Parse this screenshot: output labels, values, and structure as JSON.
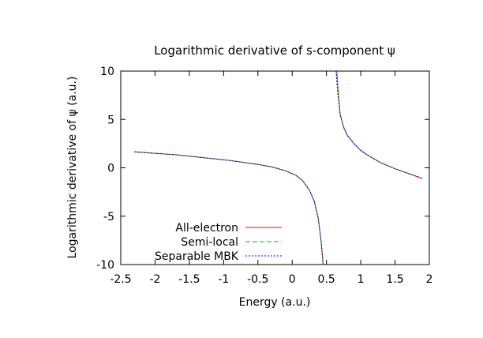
{
  "chart_data": {
    "type": "line",
    "title": "Logarithmic derivative of s-component ψ",
    "xlabel": "Energy (a.u.)",
    "ylabel": "Logarithmic derivative of ψ (a.u.)",
    "xlim": [
      -2.5,
      2
    ],
    "ylim": [
      -10,
      10
    ],
    "xticks": [
      "-2.5",
      "-2",
      "-1.5",
      "-1",
      "-0.5",
      "0",
      "0.5",
      "1",
      "1.5",
      "2"
    ],
    "yticks": [
      "10",
      "5",
      "0",
      "-5",
      "-10"
    ],
    "grid": false,
    "legend_position": "bottom-left",
    "series": [
      {
        "name": "All-electron",
        "color": "#ff0000",
        "dash": "solid",
        "segments": [
          [
            [
              -2.3,
              1.65
            ],
            [
              -2.1,
              1.55
            ],
            [
              -1.9,
              1.45
            ],
            [
              -1.7,
              1.35
            ],
            [
              -1.5,
              1.2
            ],
            [
              -1.3,
              1.05
            ],
            [
              -1.1,
              0.9
            ],
            [
              -0.9,
              0.75
            ],
            [
              -0.7,
              0.55
            ],
            [
              -0.5,
              0.35
            ],
            [
              -0.3,
              0.1
            ],
            [
              -0.1,
              -0.3
            ],
            [
              0.05,
              -0.75
            ],
            [
              0.15,
              -1.3
            ],
            [
              0.25,
              -2.3
            ],
            [
              0.32,
              -3.4
            ],
            [
              0.38,
              -5.2
            ],
            [
              0.42,
              -7.5
            ],
            [
              0.44,
              -9.0
            ],
            [
              0.45,
              -10
            ]
          ],
          [
            [
              0.65,
              10
            ],
            [
              0.67,
              8.0
            ],
            [
              0.7,
              5.5
            ],
            [
              0.75,
              4.2
            ],
            [
              0.8,
              3.4
            ],
            [
              0.9,
              2.5
            ],
            [
              1.0,
              1.8
            ],
            [
              1.1,
              1.3
            ],
            [
              1.2,
              0.9
            ],
            [
              1.3,
              0.5
            ],
            [
              1.4,
              0.2
            ],
            [
              1.5,
              -0.1
            ],
            [
              1.6,
              -0.35
            ],
            [
              1.7,
              -0.6
            ],
            [
              1.8,
              -0.85
            ],
            [
              1.9,
              -1.1
            ]
          ]
        ]
      },
      {
        "name": "Semi-local",
        "color": "#00c000",
        "dash": "6,3",
        "segments": [
          [
            [
              -2.3,
              1.65
            ],
            [
              -2.1,
              1.55
            ],
            [
              -1.9,
              1.45
            ],
            [
              -1.7,
              1.35
            ],
            [
              -1.5,
              1.2
            ],
            [
              -1.3,
              1.05
            ],
            [
              -1.1,
              0.9
            ],
            [
              -0.9,
              0.75
            ],
            [
              -0.7,
              0.55
            ],
            [
              -0.5,
              0.35
            ],
            [
              -0.3,
              0.1
            ],
            [
              -0.1,
              -0.3
            ],
            [
              0.05,
              -0.75
            ],
            [
              0.15,
              -1.3
            ],
            [
              0.25,
              -2.3
            ],
            [
              0.32,
              -3.4
            ],
            [
              0.38,
              -5.2
            ],
            [
              0.42,
              -7.5
            ],
            [
              0.44,
              -9.0
            ],
            [
              0.45,
              -10
            ]
          ],
          [
            [
              0.65,
              10
            ],
            [
              0.67,
              8.0
            ],
            [
              0.7,
              5.5
            ],
            [
              0.75,
              4.2
            ],
            [
              0.8,
              3.4
            ],
            [
              0.9,
              2.5
            ],
            [
              1.0,
              1.8
            ],
            [
              1.1,
              1.3
            ],
            [
              1.2,
              0.9
            ],
            [
              1.3,
              0.5
            ],
            [
              1.4,
              0.2
            ],
            [
              1.5,
              -0.1
            ],
            [
              1.6,
              -0.35
            ],
            [
              1.7,
              -0.6
            ],
            [
              1.8,
              -0.85
            ],
            [
              1.9,
              -1.1
            ]
          ]
        ]
      },
      {
        "name": "Separable MBK",
        "color": "#0000ff",
        "dash": "2,2",
        "segments": [
          [
            [
              -2.3,
              1.65
            ],
            [
              -2.1,
              1.55
            ],
            [
              -1.9,
              1.45
            ],
            [
              -1.7,
              1.35
            ],
            [
              -1.5,
              1.2
            ],
            [
              -1.3,
              1.05
            ],
            [
              -1.1,
              0.9
            ],
            [
              -0.9,
              0.75
            ],
            [
              -0.7,
              0.55
            ],
            [
              -0.5,
              0.35
            ],
            [
              -0.3,
              0.1
            ],
            [
              -0.1,
              -0.3
            ],
            [
              0.05,
              -0.75
            ],
            [
              0.15,
              -1.3
            ],
            [
              0.25,
              -2.3
            ],
            [
              0.32,
              -3.4
            ],
            [
              0.38,
              -5.2
            ],
            [
              0.42,
              -7.5
            ],
            [
              0.44,
              -9.0
            ],
            [
              0.455,
              -10
            ]
          ],
          [
            [
              0.64,
              10
            ],
            [
              0.66,
              8.0
            ],
            [
              0.7,
              5.5
            ],
            [
              0.75,
              4.2
            ],
            [
              0.8,
              3.4
            ],
            [
              0.9,
              2.5
            ],
            [
              1.0,
              1.8
            ],
            [
              1.1,
              1.3
            ],
            [
              1.2,
              0.9
            ],
            [
              1.3,
              0.5
            ],
            [
              1.4,
              0.2
            ],
            [
              1.5,
              -0.1
            ],
            [
              1.6,
              -0.35
            ],
            [
              1.7,
              -0.6
            ],
            [
              1.8,
              -0.85
            ],
            [
              1.9,
              -1.1
            ]
          ]
        ]
      }
    ]
  }
}
